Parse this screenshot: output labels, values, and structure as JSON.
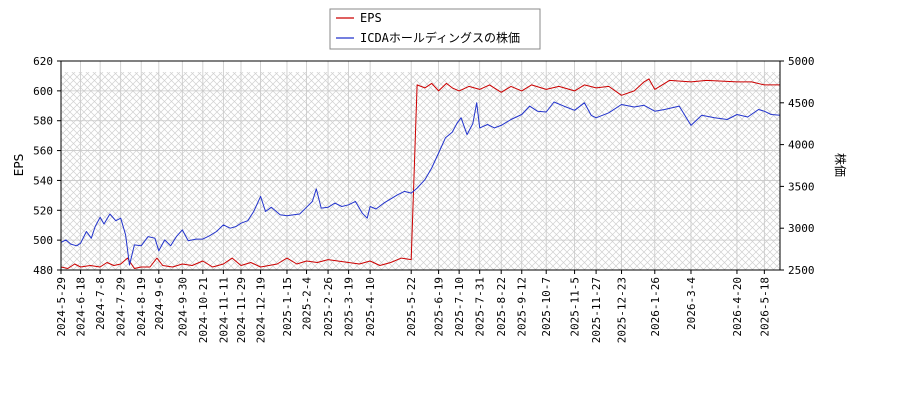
{
  "chart_data": {
    "type": "line",
    "title": "",
    "xlabel": "",
    "ylabel_left": "EPS",
    "ylabel_right": "株価",
    "ylim_left": [
      480,
      620
    ],
    "ylim_right": [
      2500,
      5000
    ],
    "yticks_left": [
      480,
      500,
      520,
      540,
      560,
      580,
      600,
      620
    ],
    "yticks_right": [
      2500,
      3000,
      3500,
      4000,
      4500,
      5000
    ],
    "xlim": [
      "2024-05-29",
      "2026-06-03"
    ],
    "xticks": [
      "2024-5-29",
      "2024-6-18",
      "2024-7-8",
      "2024-7-29",
      "2024-8-19",
      "2024-9-6",
      "2024-9-30",
      "2024-10-21",
      "2024-11-11",
      "2024-11-29",
      "2024-12-19",
      "2025-1-15",
      "2025-2-4",
      "2025-2-26",
      "2025-3-19",
      "2025-4-10",
      "2025-5-22",
      "2025-6-19",
      "2025-7-10",
      "2025-7-31",
      "2025-8-22",
      "2025-9-12",
      "2025-10-7",
      "2025-11-5",
      "2025-11-27",
      "2025-12-23",
      "2026-1-26",
      "2026-3-4",
      "2026-4-20",
      "2026-5-18"
    ],
    "grid": true,
    "legend_position": "top-center",
    "series": [
      {
        "name": "EPS",
        "axis": "left",
        "color": "#cc0000",
        "points": [
          [
            "2024-05-29",
            482
          ],
          [
            "2024-06-05",
            481
          ],
          [
            "2024-06-12",
            484
          ],
          [
            "2024-06-18",
            482
          ],
          [
            "2024-06-28",
            483
          ],
          [
            "2024-07-08",
            482
          ],
          [
            "2024-07-15",
            485
          ],
          [
            "2024-07-22",
            483
          ],
          [
            "2024-07-29",
            484
          ],
          [
            "2024-08-05",
            488
          ],
          [
            "2024-08-12",
            481
          ],
          [
            "2024-08-19",
            482
          ],
          [
            "2024-08-28",
            482
          ],
          [
            "2024-09-04",
            488
          ],
          [
            "2024-09-10",
            483
          ],
          [
            "2024-09-20",
            482
          ],
          [
            "2024-09-30",
            484
          ],
          [
            "2024-10-10",
            483
          ],
          [
            "2024-10-21",
            486
          ],
          [
            "2024-10-31",
            482
          ],
          [
            "2024-11-11",
            484
          ],
          [
            "2024-11-20",
            488
          ],
          [
            "2024-11-29",
            483
          ],
          [
            "2024-12-09",
            485
          ],
          [
            "2024-12-19",
            482
          ],
          [
            "2025-01-05",
            484
          ],
          [
            "2025-01-15",
            488
          ],
          [
            "2025-01-25",
            484
          ],
          [
            "2025-02-04",
            486
          ],
          [
            "2025-02-15",
            485
          ],
          [
            "2025-02-26",
            487
          ],
          [
            "2025-03-08",
            486
          ],
          [
            "2025-03-19",
            485
          ],
          [
            "2025-03-30",
            484
          ],
          [
            "2025-04-10",
            486
          ],
          [
            "2025-04-20",
            483
          ],
          [
            "2025-05-01",
            485
          ],
          [
            "2025-05-12",
            488
          ],
          [
            "2025-05-22",
            487
          ],
          [
            "2025-05-28",
            604
          ],
          [
            "2025-06-05",
            602
          ],
          [
            "2025-06-12",
            605
          ],
          [
            "2025-06-19",
            600
          ],
          [
            "2025-06-27",
            605
          ],
          [
            "2025-07-03",
            602
          ],
          [
            "2025-07-10",
            600
          ],
          [
            "2025-07-20",
            603
          ],
          [
            "2025-07-31",
            601
          ],
          [
            "2025-08-10",
            604
          ],
          [
            "2025-08-22",
            599
          ],
          [
            "2025-09-01",
            603
          ],
          [
            "2025-09-12",
            600
          ],
          [
            "2025-09-22",
            604
          ],
          [
            "2025-10-07",
            601
          ],
          [
            "2025-10-20",
            603
          ],
          [
            "2025-11-05",
            600
          ],
          [
            "2025-11-15",
            604
          ],
          [
            "2025-11-27",
            602
          ],
          [
            "2025-12-10",
            603
          ],
          [
            "2025-12-23",
            597
          ],
          [
            "2026-01-05",
            600
          ],
          [
            "2026-01-15",
            606
          ],
          [
            "2026-01-20",
            608
          ],
          [
            "2026-01-26",
            601
          ],
          [
            "2026-02-10",
            607
          ],
          [
            "2026-03-04",
            606
          ],
          [
            "2026-03-20",
            607
          ],
          [
            "2026-04-20",
            606
          ],
          [
            "2026-05-05",
            606
          ],
          [
            "2026-05-18",
            604
          ],
          [
            "2026-06-03",
            604
          ]
        ]
      },
      {
        "name": "ICDAホールディングスの株価",
        "axis": "right",
        "color": "#2233cc",
        "points": [
          [
            "2024-05-29",
            2830
          ],
          [
            "2024-06-03",
            2860
          ],
          [
            "2024-06-08",
            2810
          ],
          [
            "2024-06-14",
            2790
          ],
          [
            "2024-06-18",
            2820
          ],
          [
            "2024-06-24",
            2960
          ],
          [
            "2024-06-29",
            2880
          ],
          [
            "2024-07-03",
            3020
          ],
          [
            "2024-07-08",
            3130
          ],
          [
            "2024-07-12",
            3050
          ],
          [
            "2024-07-18",
            3170
          ],
          [
            "2024-07-24",
            3090
          ],
          [
            "2024-07-29",
            3120
          ],
          [
            "2024-08-03",
            2920
          ],
          [
            "2024-08-07",
            2560
          ],
          [
            "2024-08-12",
            2800
          ],
          [
            "2024-08-19",
            2790
          ],
          [
            "2024-08-26",
            2900
          ],
          [
            "2024-09-02",
            2880
          ],
          [
            "2024-09-06",
            2730
          ],
          [
            "2024-09-12",
            2860
          ],
          [
            "2024-09-18",
            2790
          ],
          [
            "2024-09-24",
            2900
          ],
          [
            "2024-09-30",
            2980
          ],
          [
            "2024-10-06",
            2850
          ],
          [
            "2024-10-14",
            2870
          ],
          [
            "2024-10-21",
            2870
          ],
          [
            "2024-10-28",
            2910
          ],
          [
            "2024-11-04",
            2960
          ],
          [
            "2024-11-11",
            3040
          ],
          [
            "2024-11-18",
            3000
          ],
          [
            "2024-11-24",
            3020
          ],
          [
            "2024-11-29",
            3060
          ],
          [
            "2024-12-06",
            3090
          ],
          [
            "2024-12-12",
            3200
          ],
          [
            "2024-12-19",
            3380
          ],
          [
            "2024-12-24",
            3200
          ],
          [
            "2024-12-30",
            3250
          ],
          [
            "2025-01-08",
            3160
          ],
          [
            "2025-01-15",
            3150
          ],
          [
            "2025-01-22",
            3160
          ],
          [
            "2025-01-28",
            3170
          ],
          [
            "2025-02-04",
            3250
          ],
          [
            "2025-02-10",
            3320
          ],
          [
            "2025-02-14",
            3470
          ],
          [
            "2025-02-19",
            3240
          ],
          [
            "2025-02-26",
            3250
          ],
          [
            "2025-03-05",
            3300
          ],
          [
            "2025-03-12",
            3260
          ],
          [
            "2025-03-19",
            3280
          ],
          [
            "2025-03-26",
            3320
          ],
          [
            "2025-04-02",
            3180
          ],
          [
            "2025-04-07",
            3120
          ],
          [
            "2025-04-10",
            3260
          ],
          [
            "2025-04-16",
            3230
          ],
          [
            "2025-04-24",
            3300
          ],
          [
            "2025-05-01",
            3350
          ],
          [
            "2025-05-08",
            3400
          ],
          [
            "2025-05-15",
            3440
          ],
          [
            "2025-05-22",
            3420
          ],
          [
            "2025-05-28",
            3480
          ],
          [
            "2025-06-05",
            3580
          ],
          [
            "2025-06-12",
            3720
          ],
          [
            "2025-06-19",
            3900
          ],
          [
            "2025-06-26",
            4080
          ],
          [
            "2025-07-03",
            4150
          ],
          [
            "2025-07-08",
            4260
          ],
          [
            "2025-07-12",
            4320
          ],
          [
            "2025-07-18",
            4120
          ],
          [
            "2025-07-24",
            4250
          ],
          [
            "2025-07-28",
            4500
          ],
          [
            "2025-07-31",
            4200
          ],
          [
            "2025-08-08",
            4240
          ],
          [
            "2025-08-15",
            4200
          ],
          [
            "2025-08-22",
            4230
          ],
          [
            "2025-09-01",
            4300
          ],
          [
            "2025-09-12",
            4360
          ],
          [
            "2025-09-20",
            4460
          ],
          [
            "2025-09-28",
            4400
          ],
          [
            "2025-10-07",
            4390
          ],
          [
            "2025-10-15",
            4510
          ],
          [
            "2025-10-25",
            4460
          ],
          [
            "2025-11-05",
            4410
          ],
          [
            "2025-11-15",
            4500
          ],
          [
            "2025-11-22",
            4350
          ],
          [
            "2025-11-27",
            4320
          ],
          [
            "2025-12-10",
            4380
          ],
          [
            "2025-12-23",
            4480
          ],
          [
            "2026-01-05",
            4450
          ],
          [
            "2026-01-15",
            4470
          ],
          [
            "2026-01-26",
            4400
          ],
          [
            "2026-02-05",
            4420
          ],
          [
            "2026-02-20",
            4460
          ],
          [
            "2026-03-04",
            4230
          ],
          [
            "2026-03-15",
            4350
          ],
          [
            "2026-03-28",
            4320
          ],
          [
            "2026-04-10",
            4300
          ],
          [
            "2026-04-20",
            4360
          ],
          [
            "2026-05-01",
            4330
          ],
          [
            "2026-05-12",
            4420
          ],
          [
            "2026-05-18",
            4400
          ],
          [
            "2026-05-25",
            4360
          ],
          [
            "2026-06-03",
            4350
          ]
        ]
      }
    ]
  }
}
